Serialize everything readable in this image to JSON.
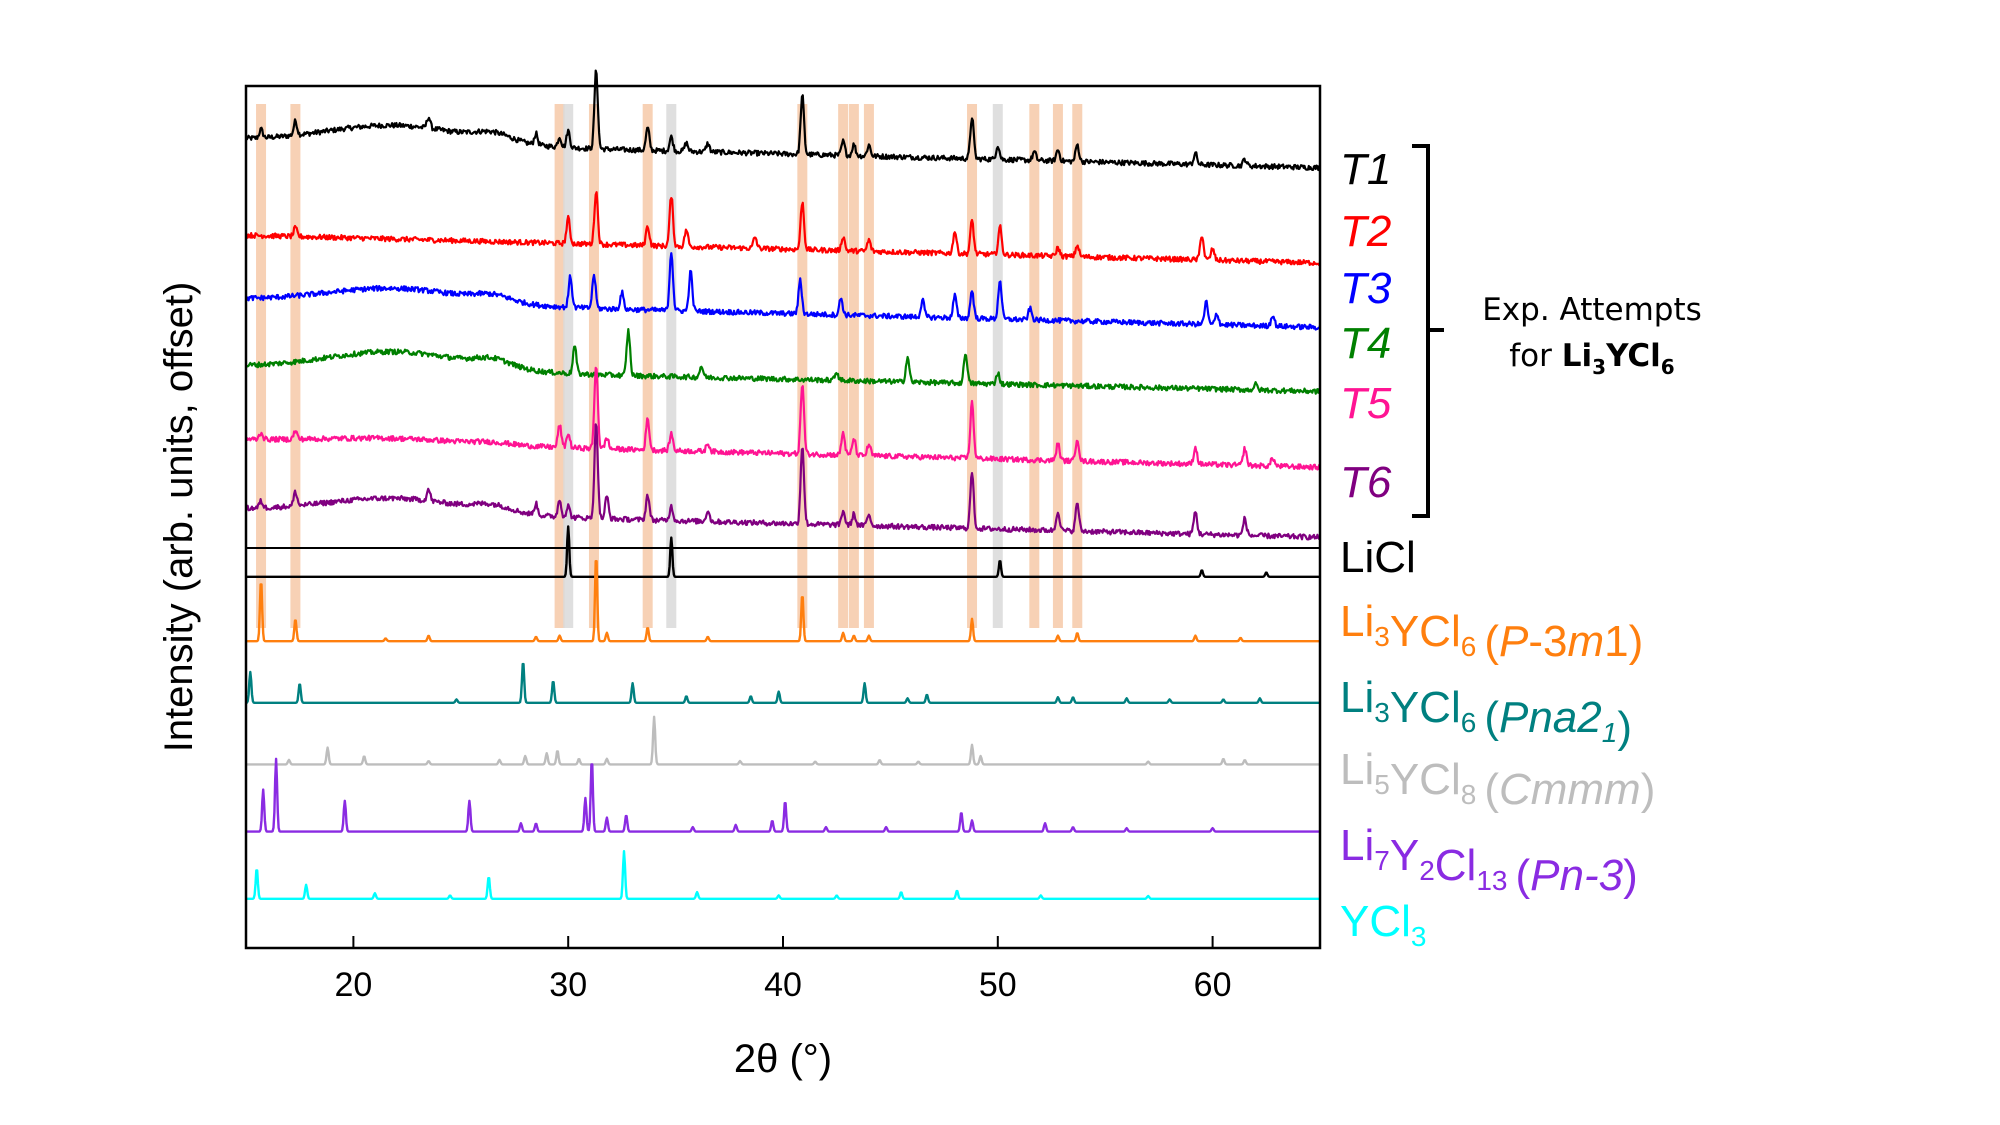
{
  "chart_data": {
    "type": "line",
    "xlabel": "2θ (°)",
    "ylabel": "Intensity (arb. units, offset)",
    "xlim": [
      15,
      65
    ],
    "xticks": [
      20,
      30,
      40,
      50,
      60
    ],
    "xtick_labels": [
      "20",
      "30",
      "40",
      "50",
      "60"
    ],
    "reference_marker_positions": {
      "orange_bands_2theta": [
        15.7,
        17.3,
        29.6,
        31.2,
        33.7,
        40.9,
        42.8,
        43.3,
        44.0,
        48.8,
        51.7,
        52.8,
        53.7
      ],
      "grey_bands_2theta": [
        30.0,
        34.8,
        50.0
      ]
    },
    "bracket_annotation": {
      "text": "Exp. Attempts",
      "text2_prefix": "for ",
      "formula": {
        "a": "Li",
        "s1": "3",
        "b": "YCl",
        "s2": "6"
      },
      "groups": [
        "T1",
        "T2",
        "T3",
        "T4",
        "T5",
        "T6"
      ]
    },
    "series": [
      {
        "name": "T1",
        "color": "#000000",
        "baseline": 0.0,
        "slope": 0.9,
        "hump": 0.55,
        "noise": 0.09,
        "peaks": [
          [
            15.7,
            0.15
          ],
          [
            17.3,
            0.25
          ],
          [
            23.5,
            0.2
          ],
          [
            28.5,
            0.2
          ],
          [
            29.6,
            0.18
          ],
          [
            30.0,
            0.3
          ],
          [
            31.3,
            1.4
          ],
          [
            33.7,
            0.4
          ],
          [
            34.8,
            0.25
          ],
          [
            35.5,
            0.15
          ],
          [
            36.5,
            0.15
          ],
          [
            40.9,
            1.05
          ],
          [
            42.8,
            0.25
          ],
          [
            43.3,
            0.2
          ],
          [
            44.0,
            0.2
          ],
          [
            48.8,
            0.75
          ],
          [
            50.0,
            0.25
          ],
          [
            51.7,
            0.15
          ],
          [
            52.8,
            0.2
          ],
          [
            53.7,
            0.3
          ],
          [
            59.2,
            0.2
          ],
          [
            61.5,
            0.12
          ]
        ]
      },
      {
        "name": "T2",
        "color": "#ff0000",
        "baseline": 1.7,
        "slope": 0.9,
        "hump": 0.0,
        "noise": 0.09,
        "peaks": [
          [
            17.3,
            0.15
          ],
          [
            30.0,
            0.45
          ],
          [
            31.3,
            0.95
          ],
          [
            33.7,
            0.35
          ],
          [
            34.8,
            0.9
          ],
          [
            35.5,
            0.3
          ],
          [
            38.7,
            0.2
          ],
          [
            40.9,
            0.85
          ],
          [
            42.8,
            0.25
          ],
          [
            44.0,
            0.2
          ],
          [
            48.0,
            0.4
          ],
          [
            48.8,
            0.6
          ],
          [
            50.1,
            0.5
          ],
          [
            52.8,
            0.15
          ],
          [
            53.7,
            0.2
          ],
          [
            59.5,
            0.45
          ],
          [
            60.0,
            0.2
          ]
        ]
      },
      {
        "name": "T3",
        "color": "#0000ff",
        "baseline": 2.85,
        "slope": 0.9,
        "hump": 0.45,
        "noise": 0.09,
        "peaks": [
          [
            30.1,
            0.55
          ],
          [
            31.2,
            0.6
          ],
          [
            32.5,
            0.3
          ],
          [
            34.8,
            1.05
          ],
          [
            35.7,
            0.7
          ],
          [
            40.8,
            0.6
          ],
          [
            42.7,
            0.3
          ],
          [
            46.5,
            0.3
          ],
          [
            48.0,
            0.4
          ],
          [
            48.8,
            0.5
          ],
          [
            50.1,
            0.7
          ],
          [
            51.5,
            0.2
          ],
          [
            59.7,
            0.4
          ],
          [
            60.2,
            0.2
          ],
          [
            62.8,
            0.2
          ]
        ]
      },
      {
        "name": "T4",
        "color": "#008000",
        "baseline": 4.05,
        "slope": 0.8,
        "hump": 0.55,
        "noise": 0.09,
        "peaks": [
          [
            30.3,
            0.5
          ],
          [
            32.8,
            0.8
          ],
          [
            36.2,
            0.2
          ],
          [
            42.5,
            0.15
          ],
          [
            45.8,
            0.45
          ],
          [
            48.5,
            0.55
          ],
          [
            50.0,
            0.2
          ],
          [
            62.0,
            0.1
          ]
        ]
      },
      {
        "name": "T5",
        "color": "#ff1493",
        "baseline": 5.35,
        "slope": 0.9,
        "hump": 0.15,
        "noise": 0.09,
        "peaks": [
          [
            15.7,
            0.12
          ],
          [
            17.3,
            0.15
          ],
          [
            29.6,
            0.4
          ],
          [
            30.0,
            0.25
          ],
          [
            31.3,
            1.5
          ],
          [
            31.8,
            0.2
          ],
          [
            33.7,
            0.55
          ],
          [
            34.8,
            0.3
          ],
          [
            36.5,
            0.15
          ],
          [
            40.9,
            1.25
          ],
          [
            42.8,
            0.4
          ],
          [
            43.3,
            0.3
          ],
          [
            44.0,
            0.2
          ],
          [
            48.8,
            1.0
          ],
          [
            52.8,
            0.3
          ],
          [
            53.7,
            0.4
          ],
          [
            59.2,
            0.3
          ],
          [
            61.5,
            0.3
          ],
          [
            62.8,
            0.15
          ]
        ]
      },
      {
        "name": "T6",
        "color": "#800080",
        "baseline": 6.6,
        "slope": 0.9,
        "hump": 0.45,
        "noise": 0.09,
        "peaks": [
          [
            15.7,
            0.12
          ],
          [
            17.3,
            0.25
          ],
          [
            23.5,
            0.2
          ],
          [
            28.5,
            0.2
          ],
          [
            29.6,
            0.3
          ],
          [
            30.0,
            0.2
          ],
          [
            31.3,
            1.7
          ],
          [
            31.8,
            0.4
          ],
          [
            33.7,
            0.45
          ],
          [
            34.8,
            0.25
          ],
          [
            36.5,
            0.2
          ],
          [
            40.9,
            1.4
          ],
          [
            42.8,
            0.25
          ],
          [
            43.3,
            0.2
          ],
          [
            44.0,
            0.2
          ],
          [
            48.8,
            1.0
          ],
          [
            52.8,
            0.35
          ],
          [
            53.7,
            0.5
          ],
          [
            59.2,
            0.4
          ],
          [
            61.5,
            0.3
          ]
        ]
      },
      {
        "name": "LiCl",
        "color": "#000000",
        "baseline": 7.8,
        "slope": 0.0,
        "hump": 0.0,
        "noise": 0.0,
        "peaks": [
          [
            30.0,
            0.9
          ],
          [
            34.8,
            0.7
          ],
          [
            50.1,
            0.3
          ],
          [
            59.5,
            0.12
          ],
          [
            62.5,
            0.08
          ]
        ]
      },
      {
        "name": "Li3YCl6 (P-3m1)",
        "color": "#ff7f0e",
        "baseline": 8.95,
        "slope": 0.0,
        "hump": 0.0,
        "noise": 0.0,
        "peaks": [
          [
            15.7,
            1.1
          ],
          [
            17.3,
            0.4
          ],
          [
            21.5,
            0.05
          ],
          [
            23.5,
            0.1
          ],
          [
            28.5,
            0.08
          ],
          [
            29.6,
            0.1
          ],
          [
            31.3,
            1.55
          ],
          [
            31.8,
            0.15
          ],
          [
            33.7,
            0.25
          ],
          [
            36.5,
            0.08
          ],
          [
            40.9,
            0.85
          ],
          [
            42.8,
            0.15
          ],
          [
            43.3,
            0.1
          ],
          [
            44.0,
            0.1
          ],
          [
            48.8,
            0.4
          ],
          [
            52.8,
            0.1
          ],
          [
            53.7,
            0.15
          ],
          [
            59.2,
            0.1
          ],
          [
            61.3,
            0.06
          ]
        ]
      },
      {
        "name": "Li3YCl6 (Pna21)",
        "color": "#008080",
        "baseline": 10.05,
        "slope": 0.0,
        "hump": 0.0,
        "noise": 0.0,
        "peaks": [
          [
            15.2,
            0.55
          ],
          [
            17.5,
            0.35
          ],
          [
            24.8,
            0.06
          ],
          [
            27.9,
            0.75
          ],
          [
            29.3,
            0.4
          ],
          [
            33.0,
            0.35
          ],
          [
            35.5,
            0.12
          ],
          [
            38.5,
            0.12
          ],
          [
            39.8,
            0.2
          ],
          [
            43.8,
            0.35
          ],
          [
            45.8,
            0.08
          ],
          [
            46.7,
            0.15
          ],
          [
            52.8,
            0.1
          ],
          [
            53.5,
            0.1
          ],
          [
            56.0,
            0.08
          ],
          [
            58.0,
            0.06
          ],
          [
            60.5,
            0.06
          ],
          [
            62.2,
            0.08
          ]
        ]
      },
      {
        "name": "Li5YCl8 (Cmmm)",
        "color": "#bdbdbd",
        "baseline": 11.15,
        "slope": 0.0,
        "hump": 0.0,
        "noise": 0.0,
        "peaks": [
          [
            17.0,
            0.08
          ],
          [
            18.8,
            0.3
          ],
          [
            20.5,
            0.15
          ],
          [
            23.5,
            0.06
          ],
          [
            26.8,
            0.08
          ],
          [
            28.0,
            0.15
          ],
          [
            29.0,
            0.2
          ],
          [
            29.5,
            0.25
          ],
          [
            30.5,
            0.1
          ],
          [
            31.8,
            0.1
          ],
          [
            34.0,
            0.85
          ],
          [
            38.0,
            0.06
          ],
          [
            41.5,
            0.05
          ],
          [
            44.5,
            0.08
          ],
          [
            46.3,
            0.05
          ],
          [
            48.8,
            0.35
          ],
          [
            49.2,
            0.15
          ],
          [
            57.0,
            0.05
          ],
          [
            60.5,
            0.1
          ],
          [
            61.5,
            0.08
          ]
        ]
      },
      {
        "name": "Li7Y2Cl13 (Pn-3)",
        "color": "#8a2be2",
        "baseline": 12.35,
        "slope": 0.0,
        "hump": 0.0,
        "noise": 0.0,
        "peaks": [
          [
            15.8,
            0.75
          ],
          [
            16.4,
            1.3
          ],
          [
            19.6,
            0.55
          ],
          [
            25.4,
            0.55
          ],
          [
            27.8,
            0.15
          ],
          [
            28.5,
            0.15
          ],
          [
            30.8,
            0.6
          ],
          [
            31.1,
            1.3
          ],
          [
            31.8,
            0.25
          ],
          [
            32.7,
            0.3
          ],
          [
            35.8,
            0.08
          ],
          [
            37.8,
            0.12
          ],
          [
            39.5,
            0.2
          ],
          [
            40.1,
            0.55
          ],
          [
            42.0,
            0.08
          ],
          [
            44.8,
            0.08
          ],
          [
            48.3,
            0.35
          ],
          [
            48.8,
            0.2
          ],
          [
            52.2,
            0.15
          ],
          [
            53.5,
            0.08
          ],
          [
            56.0,
            0.06
          ],
          [
            60.0,
            0.06
          ]
        ]
      },
      {
        "name": "YCl3",
        "color": "#00ffff",
        "baseline": 13.55,
        "slope": 0.0,
        "hump": 0.0,
        "noise": 0.0,
        "peaks": [
          [
            15.5,
            0.55
          ],
          [
            17.8,
            0.25
          ],
          [
            21.0,
            0.1
          ],
          [
            24.5,
            0.06
          ],
          [
            26.3,
            0.4
          ],
          [
            32.6,
            0.85
          ],
          [
            36.0,
            0.12
          ],
          [
            39.8,
            0.06
          ],
          [
            42.5,
            0.06
          ],
          [
            45.5,
            0.12
          ],
          [
            48.1,
            0.15
          ],
          [
            52.0,
            0.06
          ],
          [
            57.0,
            0.05
          ]
        ]
      }
    ],
    "legend": [
      {
        "name": "T1",
        "color": "#000000",
        "plain": "",
        "italic": "T1"
      },
      {
        "name": "T2",
        "color": "#ff0000",
        "plain": "",
        "italic": "T2"
      },
      {
        "name": "T3",
        "color": "#0000ff",
        "plain": "",
        "italic": "T3"
      },
      {
        "name": "T4",
        "color": "#008000",
        "plain": "",
        "italic": "T4"
      },
      {
        "name": "T5",
        "color": "#ff1493",
        "plain": "",
        "italic": "T5"
      },
      {
        "name": "T6",
        "color": "#800080",
        "plain": "",
        "italic": "T6"
      },
      {
        "name": "LiCl",
        "color": "#000000",
        "plain": "LiCl",
        "italic": ""
      },
      {
        "name": "Li3YCl6 (P-3m1)",
        "color": "#ff7f0e",
        "formula": [
          [
            "Li",
            "3"
          ],
          [
            "YCl",
            "6"
          ]
        ],
        "phase": [
          "P",
          "-3",
          "m",
          "1"
        ]
      },
      {
        "name": "Li3YCl6 (Pna21)",
        "color": "#008080",
        "formula": [
          [
            "Li",
            "3"
          ],
          [
            "YCl",
            "6"
          ]
        ],
        "phase": [
          "Pna2",
          "1"
        ]
      },
      {
        "name": "Li5YCl8 (Cmmm)",
        "color": "#bdbdbd",
        "formula": [
          [
            "Li",
            "5"
          ],
          [
            "YCl",
            "8"
          ]
        ],
        "phase": [
          "Cmmm"
        ]
      },
      {
        "name": "Li7Y2Cl13 (Pn-3)",
        "color": "#8a2be2",
        "formula": [
          [
            "Li",
            "7"
          ],
          [
            "Y",
            "2"
          ],
          [
            "Cl",
            "13"
          ]
        ],
        "phase": [
          "Pn-3"
        ]
      },
      {
        "name": "YCl3",
        "color": "#00ffff",
        "formula": [
          [
            "YCl",
            "3"
          ]
        ],
        "phase": []
      }
    ]
  }
}
